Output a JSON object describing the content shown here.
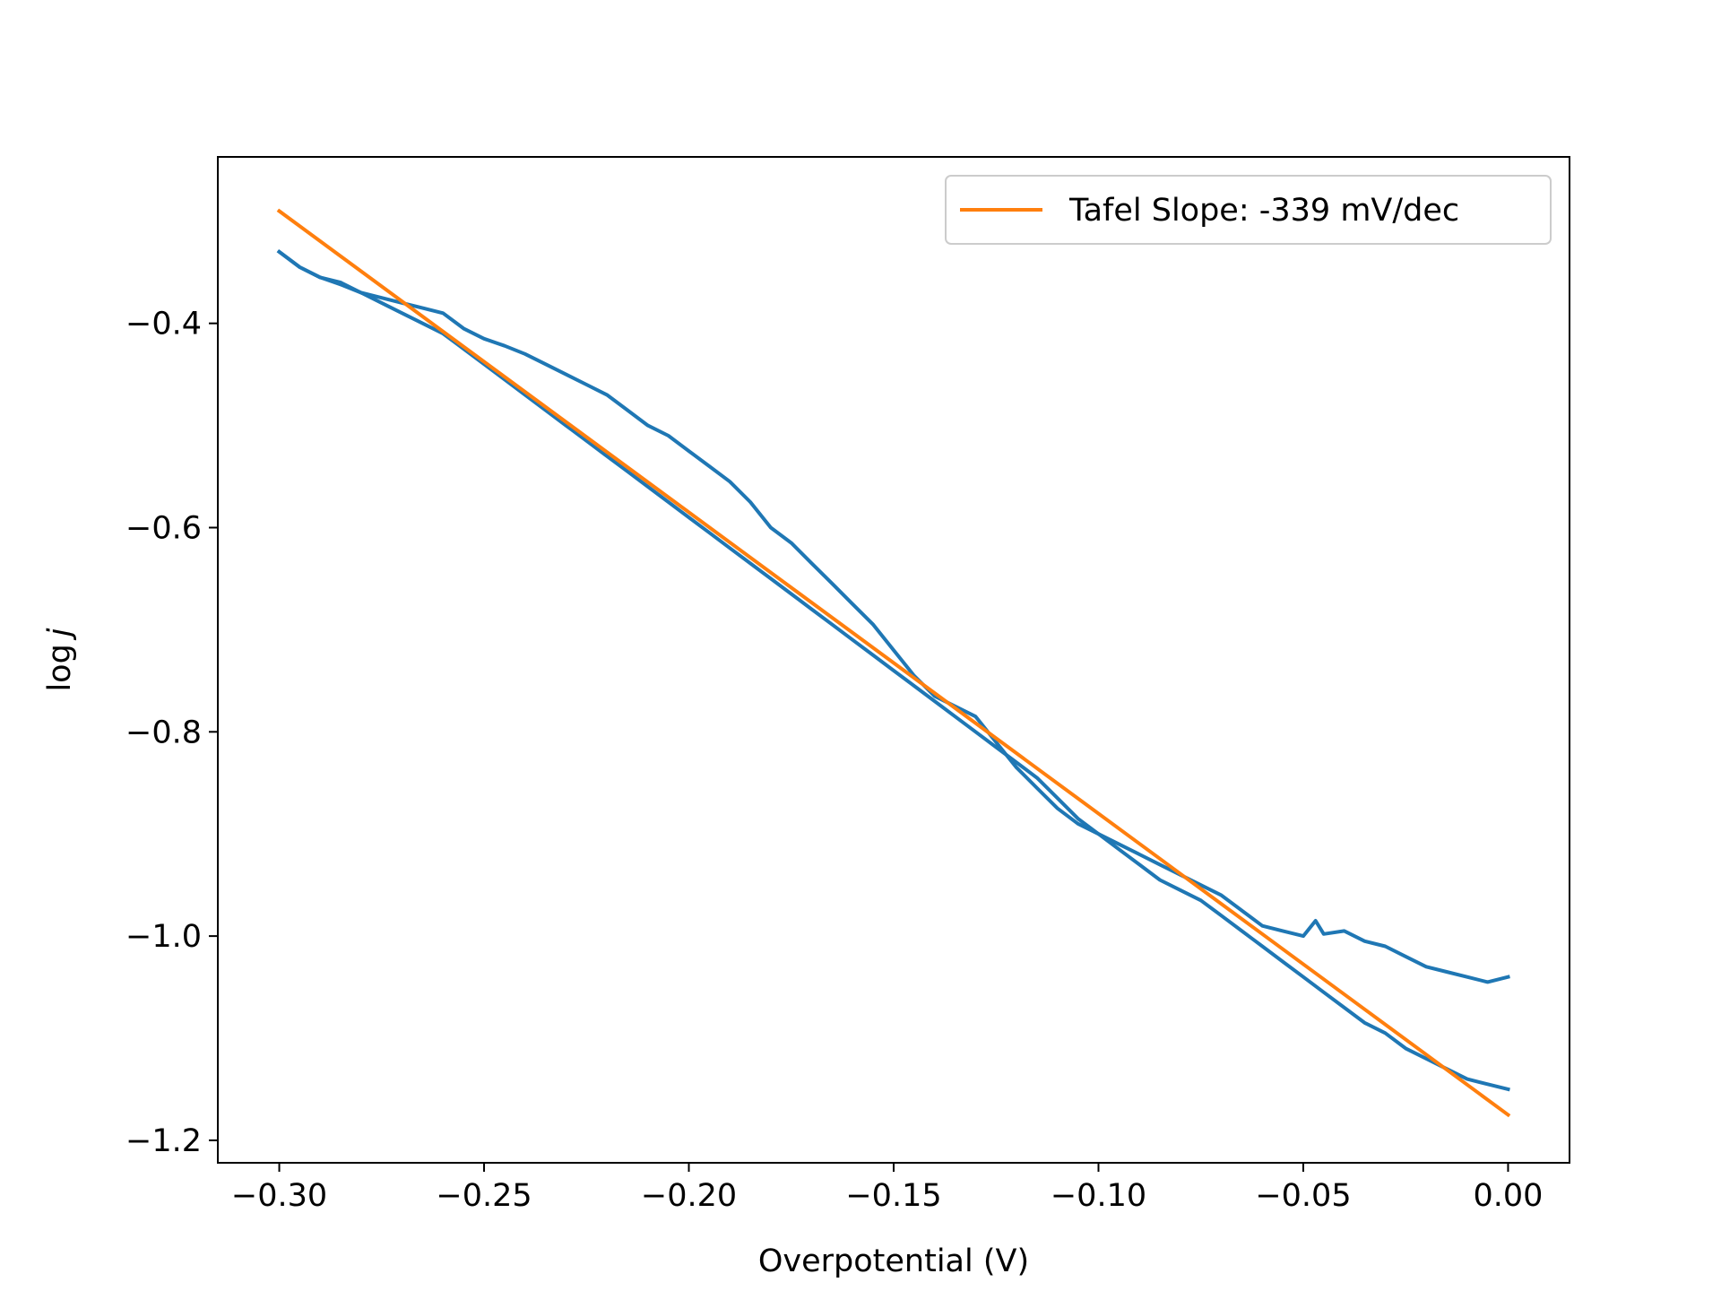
{
  "chart_data": {
    "type": "line",
    "title": "",
    "xlabel": "Overpotential (V)",
    "ylabel_prefix": "log",
    "ylabel_var": "j",
    "xlim": [
      -0.315,
      0.015
    ],
    "ylim": [
      -1.222,
      -0.237
    ],
    "x_ticks": [
      -0.3,
      -0.25,
      -0.2,
      -0.15,
      -0.1,
      -0.05,
      0.0
    ],
    "x_tick_labels": [
      "−0.30",
      "−0.25",
      "−0.20",
      "−0.15",
      "−0.10",
      "−0.05",
      "0.00"
    ],
    "y_ticks": [
      -1.2,
      -1.0,
      -0.8,
      -0.6,
      -0.4
    ],
    "y_tick_labels": [
      "−1.2",
      "−1.0",
      "−0.8",
      "−0.6",
      "−0.4"
    ],
    "grid": false,
    "legend_position": "top-right",
    "series": [
      {
        "color": "#1f77b4",
        "points": [
          [
            -0.3,
            -0.33
          ],
          [
            -0.295,
            -0.345
          ],
          [
            -0.29,
            -0.355
          ],
          [
            -0.285,
            -0.362
          ],
          [
            -0.28,
            -0.37
          ],
          [
            -0.275,
            -0.375
          ],
          [
            -0.27,
            -0.38
          ],
          [
            -0.265,
            -0.385
          ],
          [
            -0.26,
            -0.39
          ],
          [
            -0.255,
            -0.405
          ],
          [
            -0.25,
            -0.415
          ],
          [
            -0.245,
            -0.422
          ],
          [
            -0.24,
            -0.43
          ],
          [
            -0.235,
            -0.44
          ],
          [
            -0.23,
            -0.45
          ],
          [
            -0.225,
            -0.46
          ],
          [
            -0.22,
            -0.47
          ],
          [
            -0.215,
            -0.485
          ],
          [
            -0.21,
            -0.5
          ],
          [
            -0.205,
            -0.51
          ],
          [
            -0.2,
            -0.525
          ],
          [
            -0.195,
            -0.54
          ],
          [
            -0.19,
            -0.555
          ],
          [
            -0.185,
            -0.575
          ],
          [
            -0.18,
            -0.6
          ],
          [
            -0.175,
            -0.615
          ],
          [
            -0.17,
            -0.635
          ],
          [
            -0.165,
            -0.655
          ],
          [
            -0.16,
            -0.675
          ],
          [
            -0.155,
            -0.695
          ],
          [
            -0.15,
            -0.72
          ],
          [
            -0.145,
            -0.745
          ],
          [
            -0.14,
            -0.765
          ],
          [
            -0.135,
            -0.775
          ],
          [
            -0.13,
            -0.785
          ],
          [
            -0.125,
            -0.81
          ],
          [
            -0.12,
            -0.835
          ],
          [
            -0.115,
            -0.855
          ],
          [
            -0.11,
            -0.875
          ],
          [
            -0.105,
            -0.89
          ],
          [
            -0.1,
            -0.9
          ],
          [
            -0.095,
            -0.91
          ],
          [
            -0.09,
            -0.92
          ],
          [
            -0.085,
            -0.93
          ],
          [
            -0.08,
            -0.94
          ],
          [
            -0.075,
            -0.95
          ],
          [
            -0.07,
            -0.96
          ],
          [
            -0.065,
            -0.975
          ],
          [
            -0.06,
            -0.99
          ],
          [
            -0.055,
            -0.995
          ],
          [
            -0.05,
            -1.0
          ],
          [
            -0.047,
            -0.985
          ],
          [
            -0.045,
            -0.998
          ],
          [
            -0.04,
            -0.995
          ],
          [
            -0.035,
            -1.005
          ],
          [
            -0.03,
            -1.01
          ],
          [
            -0.025,
            -1.02
          ],
          [
            -0.02,
            -1.03
          ],
          [
            -0.015,
            -1.035
          ],
          [
            -0.01,
            -1.04
          ],
          [
            -0.005,
            -1.045
          ],
          [
            0.0,
            -1.04
          ]
        ]
      },
      {
        "color": "#1f77b4",
        "points": [
          [
            -0.3,
            -0.33
          ],
          [
            -0.295,
            -0.345
          ],
          [
            -0.29,
            -0.355
          ],
          [
            -0.285,
            -0.36
          ],
          [
            -0.28,
            -0.37
          ],
          [
            -0.275,
            -0.38
          ],
          [
            -0.27,
            -0.39
          ],
          [
            -0.265,
            -0.4
          ],
          [
            -0.26,
            -0.41
          ],
          [
            -0.255,
            -0.425
          ],
          [
            -0.25,
            -0.44
          ],
          [
            -0.245,
            -0.455
          ],
          [
            -0.24,
            -0.47
          ],
          [
            -0.235,
            -0.485
          ],
          [
            -0.23,
            -0.5
          ],
          [
            -0.225,
            -0.515
          ],
          [
            -0.22,
            -0.53
          ],
          [
            -0.215,
            -0.545
          ],
          [
            -0.21,
            -0.56
          ],
          [
            -0.205,
            -0.575
          ],
          [
            -0.2,
            -0.59
          ],
          [
            -0.195,
            -0.605
          ],
          [
            -0.19,
            -0.62
          ],
          [
            -0.185,
            -0.635
          ],
          [
            -0.18,
            -0.65
          ],
          [
            -0.175,
            -0.665
          ],
          [
            -0.17,
            -0.68
          ],
          [
            -0.165,
            -0.695
          ],
          [
            -0.16,
            -0.71
          ],
          [
            -0.155,
            -0.725
          ],
          [
            -0.15,
            -0.74
          ],
          [
            -0.145,
            -0.755
          ],
          [
            -0.14,
            -0.77
          ],
          [
            -0.135,
            -0.785
          ],
          [
            -0.13,
            -0.8
          ],
          [
            -0.125,
            -0.815
          ],
          [
            -0.12,
            -0.83
          ],
          [
            -0.115,
            -0.845
          ],
          [
            -0.11,
            -0.865
          ],
          [
            -0.105,
            -0.885
          ],
          [
            -0.1,
            -0.9
          ],
          [
            -0.095,
            -0.915
          ],
          [
            -0.09,
            -0.93
          ],
          [
            -0.085,
            -0.945
          ],
          [
            -0.08,
            -0.955
          ],
          [
            -0.075,
            -0.965
          ],
          [
            -0.07,
            -0.98
          ],
          [
            -0.065,
            -0.995
          ],
          [
            -0.06,
            -1.01
          ],
          [
            -0.055,
            -1.025
          ],
          [
            -0.05,
            -1.04
          ],
          [
            -0.045,
            -1.055
          ],
          [
            -0.04,
            -1.07
          ],
          [
            -0.035,
            -1.085
          ],
          [
            -0.03,
            -1.095
          ],
          [
            -0.025,
            -1.11
          ],
          [
            -0.02,
            -1.12
          ],
          [
            -0.015,
            -1.13
          ],
          [
            -0.01,
            -1.14
          ],
          [
            -0.005,
            -1.145
          ],
          [
            0.0,
            -1.15
          ]
        ]
      },
      {
        "name": "Tafel Slope: -339 mV/dec",
        "color": "#ff7f0e",
        "points": [
          [
            -0.3,
            -0.29
          ],
          [
            0.0,
            -1.175
          ]
        ]
      }
    ]
  }
}
